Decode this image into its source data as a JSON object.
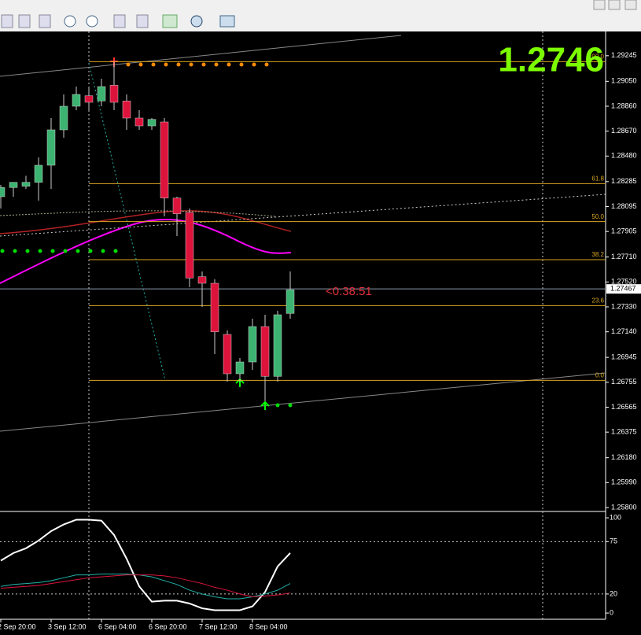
{
  "chart_data": {
    "type": "candlestick",
    "categories": [
      "2 Sep 20:00",
      null,
      null,
      null,
      "3 Sep 12:00",
      null,
      null,
      null,
      "6 Sep 04:00",
      null,
      null,
      null,
      "6 Sep 20:00",
      null,
      null,
      null,
      "7 Sep 12:00",
      null,
      null,
      null,
      "8 Sep 04:00",
      null,
      null,
      null
    ],
    "open": [
      1.2817,
      1.2824,
      1.2825,
      1.2828,
      1.2841,
      1.2868,
      1.2886,
      1.2894,
      1.289,
      1.2902,
      1.289,
      1.2877,
      1.2871,
      1.2874,
      1.2816,
      1.2805,
      1.2756,
      1.2751,
      1.2712,
      1.2682,
      1.2691,
      1.2718,
      1.268,
      1.2728
    ],
    "high": [
      1.2826,
      1.2828,
      1.2833,
      1.2847,
      1.2877,
      1.2895,
      1.2901,
      1.2901,
      1.2907,
      1.292,
      1.2895,
      1.2883,
      1.2877,
      1.2877,
      1.2817,
      1.2808,
      1.276,
      1.2754,
      1.2715,
      1.2694,
      1.2724,
      1.2727,
      1.273,
      1.276
    ],
    "low": [
      1.2808,
      1.2817,
      1.2823,
      1.2814,
      1.2823,
      1.2862,
      1.2883,
      1.2883,
      1.2886,
      1.2883,
      1.2868,
      1.2868,
      1.2868,
      1.2802,
      1.2787,
      1.2748,
      1.2733,
      1.2697,
      1.2676,
      1.2676,
      1.2685,
      1.2661,
      1.2676,
      1.2724
    ],
    "close": [
      1.2824,
      1.2828,
      1.2828,
      1.2841,
      1.2868,
      1.2886,
      1.2895,
      1.2889,
      1.2901,
      1.2889,
      1.2877,
      1.2871,
      1.2876,
      1.2816,
      1.2804,
      1.2755,
      1.2751,
      1.2714,
      1.2682,
      1.2691,
      1.2718,
      1.268,
      1.2727,
      1.2746
    ],
    "up_color": "#3cb371",
    "down_color": "#dc143c",
    "ylim": [
      1.2577,
      1.294
    ],
    "yticks": [
      1.29245,
      {
        "value": 1.2905,
        "label": "1.29050"
      },
      {
        "value": 1.2886,
        "label": "1.28860"
      },
      {
        "value": 1.2867,
        "label": "1.28670"
      },
      {
        "value": 1.2848,
        "label": "1.28480"
      },
      1.28285,
      1.28095,
      1.27905,
      {
        "value": 1.2771,
        "label": "1.27710"
      },
      {
        "value": 1.2752,
        "label": "1.27520"
      },
      {
        "value": 1.2733,
        "label": "1.27330"
      },
      {
        "value": 1.2714,
        "label": "1.27140"
      },
      1.26945,
      1.26755,
      1.26565,
      1.26375,
      {
        "value": 1.2618,
        "label": "1.26180"
      },
      {
        "value": 1.2599,
        "label": "1.25990"
      },
      {
        "value": 1.258,
        "label": "1.25800"
      }
    ],
    "current_price": 1.27467,
    "price_display": "1.2746",
    "timer": "<0:38:51",
    "fibonacci": [
      {
        "level": "100.0",
        "price": 1.292
      },
      {
        "level": "61.8",
        "price": 1.2827
      },
      {
        "level": "50.0",
        "price": 1.2798
      },
      {
        "level": "38.2",
        "price": 1.2769
      },
      {
        "level": "23.6",
        "price": 1.2734
      },
      {
        "level": "0.0",
        "price": 1.2677
      }
    ],
    "indicator": {
      "type": "line",
      "ylim": [
        -9,
        105
      ],
      "yticks": [
        100,
        75,
        20,
        0
      ],
      "series": [
        {
          "color": "#ffffff",
          "values": [
            55,
            63,
            68,
            76,
            86,
            93,
            98,
            98,
            97,
            82,
            57,
            28,
            12,
            13,
            13,
            10,
            5,
            3,
            3,
            3,
            7,
            22,
            49,
            63
          ]
        },
        {
          "color": "#20b2aa",
          "values": [
            28,
            30,
            31,
            32,
            34,
            37,
            40,
            40,
            41,
            41,
            41,
            40,
            38,
            34,
            30,
            24,
            20,
            17,
            15,
            15,
            17,
            20,
            24,
            31
          ]
        },
        {
          "color": "#dc143c",
          "values": [
            26,
            27,
            28,
            29,
            31,
            33,
            35,
            37,
            38,
            39,
            40,
            40,
            40,
            39,
            37,
            34,
            31,
            27,
            24,
            20,
            17,
            18,
            19,
            21
          ]
        }
      ]
    }
  }
}
